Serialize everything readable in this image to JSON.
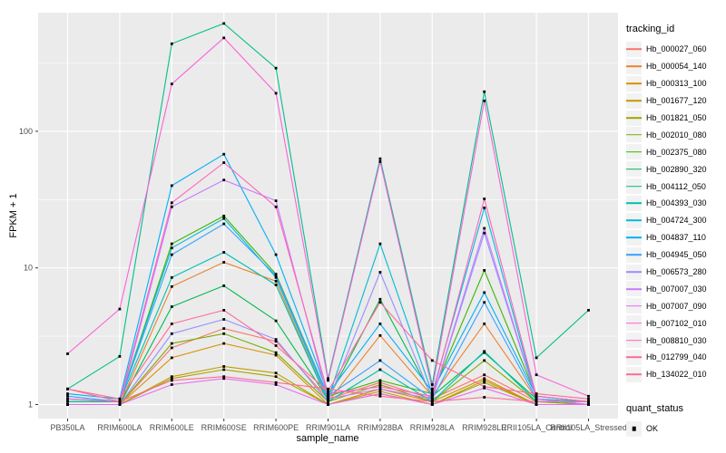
{
  "figure": {
    "background": "#ffffff",
    "panel_background": "#ebebeb",
    "gridline_color": "#ffffff",
    "tick_label_color": "#4d4d4d",
    "point_color": "#000000"
  },
  "chart_data": {
    "type": "line",
    "title": "",
    "xlabel": "sample_name",
    "ylabel": "FPKM + 1",
    "y_scale": "log10",
    "y_ticks": [
      1,
      10,
      100
    ],
    "y_minor_ticks": [
      3.1623,
      31.623,
      316.23
    ],
    "ylim": [
      0.79,
      740
    ],
    "grid": true,
    "legend": {
      "title": "tracking_id",
      "position": "right"
    },
    "quant_legend": {
      "title": "quant_status",
      "items": [
        {
          "label": "OK",
          "marker": "black-square"
        }
      ]
    },
    "categories": [
      "PB350LA",
      "RRIM600LA",
      "RRIM600LE",
      "RRIM600SE",
      "RRIM600PE",
      "RRIM901LA",
      "RRIM928BA",
      "RRIM928LA",
      "RRIM928LE",
      "RRII105LA_Control",
      "RRII105LA_Stressed"
    ],
    "series": [
      {
        "name": "Hb_000027_060",
        "color": "#F8766D",
        "values": [
          1.0,
          1.0,
          2.6,
          3.6,
          2.9,
          1.1,
          1.45,
          1.1,
          1.65,
          1.05,
          1.0
        ]
      },
      {
        "name": "Hb_000054_140",
        "color": "#EA8331",
        "values": [
          1.0,
          1.0,
          7.3,
          11,
          8.0,
          1.05,
          3.2,
          1.15,
          3.9,
          1.1,
          1.0
        ]
      },
      {
        "name": "Hb_000313_100",
        "color": "#D89000",
        "values": [
          1.0,
          1.0,
          2.2,
          2.8,
          2.3,
          1.0,
          1.3,
          1.05,
          1.55,
          1.0,
          1.0
        ]
      },
      {
        "name": "Hb_001677_120",
        "color": "#C09B00",
        "values": [
          1.0,
          1.0,
          1.6,
          1.9,
          1.7,
          1.0,
          1.25,
          1.0,
          1.5,
          1.0,
          1.0
        ]
      },
      {
        "name": "Hb_001821_050",
        "color": "#A3A500",
        "values": [
          1.0,
          1.0,
          1.55,
          1.8,
          1.6,
          1.0,
          1.2,
          1.0,
          1.45,
          1.0,
          1.0
        ]
      },
      {
        "name": "Hb_002010_080",
        "color": "#7CAE00",
        "values": [
          1.0,
          1.0,
          2.8,
          3.3,
          2.4,
          1.05,
          1.4,
          1.05,
          2.1,
          1.05,
          1.0
        ]
      },
      {
        "name": "Hb_002375_080",
        "color": "#39B600",
        "values": [
          1.05,
          1.05,
          15,
          24,
          9.0,
          1.15,
          1.5,
          1.2,
          9.6,
          1.15,
          1.05
        ]
      },
      {
        "name": "Hb_002890_320",
        "color": "#00BB4E",
        "values": [
          1.0,
          1.0,
          5.2,
          7.4,
          4.1,
          1.1,
          5.9,
          1.15,
          2.4,
          1.1,
          1.0
        ]
      },
      {
        "name": "Hb_004112_050",
        "color": "#00C087",
        "values": [
          1.3,
          2.25,
          437,
          615,
          290,
          1.55,
          63,
          1.4,
          195,
          2.2,
          4.9
        ]
      },
      {
        "name": "Hb_004393_030",
        "color": "#00C0B2",
        "values": [
          1.05,
          1.05,
          8.5,
          13,
          7.5,
          1.05,
          1.8,
          1.05,
          2.45,
          1.05,
          1.05
        ]
      },
      {
        "name": "Hb_004724_300",
        "color": "#00BCD8",
        "values": [
          1.1,
          1.05,
          14,
          23,
          8.5,
          1.1,
          15,
          1.2,
          27.5,
          1.1,
          1.05
        ]
      },
      {
        "name": "Hb_004837_110",
        "color": "#00B0F6",
        "values": [
          1.2,
          1.1,
          40,
          68,
          12.5,
          1.2,
          3.9,
          1.25,
          6.6,
          1.15,
          1.05
        ]
      },
      {
        "name": "Hb_004945_050",
        "color": "#35A2FF",
        "values": [
          1.15,
          1.05,
          12.5,
          21,
          8.8,
          1.15,
          2.1,
          1.1,
          5.6,
          1.1,
          1.0
        ]
      },
      {
        "name": "Hb_006573_280",
        "color": "#9590FF",
        "values": [
          1.0,
          1.0,
          3.3,
          4.2,
          3.0,
          1.05,
          9.3,
          1.1,
          18,
          1.1,
          1.0
        ]
      },
      {
        "name": "Hb_007007_030",
        "color": "#C77CFF",
        "values": [
          1.0,
          1.0,
          28,
          44,
          31,
          1.1,
          1.3,
          1.1,
          19.5,
          1.1,
          1.0
        ]
      },
      {
        "name": "Hb_007007_090",
        "color": "#E76BF3",
        "values": [
          1.0,
          1.0,
          1.4,
          1.55,
          1.4,
          1.0,
          1.2,
          1.0,
          1.32,
          1.0,
          1.0
        ]
      },
      {
        "name": "Hb_007102_010",
        "color": "#FA62DB",
        "values": [
          2.35,
          5.0,
          222,
          483,
          190,
          1.5,
          60,
          1.3,
          167,
          1.65,
          1.15
        ]
      },
      {
        "name": "Hb_008810_030",
        "color": "#FF62BC",
        "values": [
          1.1,
          1.05,
          30,
          59,
          28,
          1.2,
          1.35,
          1.15,
          32,
          1.15,
          1.05
        ]
      },
      {
        "name": "Hb_012799_040",
        "color": "#FF6A98",
        "values": [
          1.3,
          1.1,
          3.9,
          4.9,
          2.7,
          1.25,
          5.6,
          2.1,
          1.35,
          1.2,
          1.1
        ]
      },
      {
        "name": "Hb_134022_010",
        "color": "#FF6C91",
        "values": [
          1.3,
          1.05,
          1.5,
          1.6,
          1.45,
          1.3,
          1.15,
          1.05,
          1.13,
          1.05,
          1.05
        ]
      }
    ]
  }
}
